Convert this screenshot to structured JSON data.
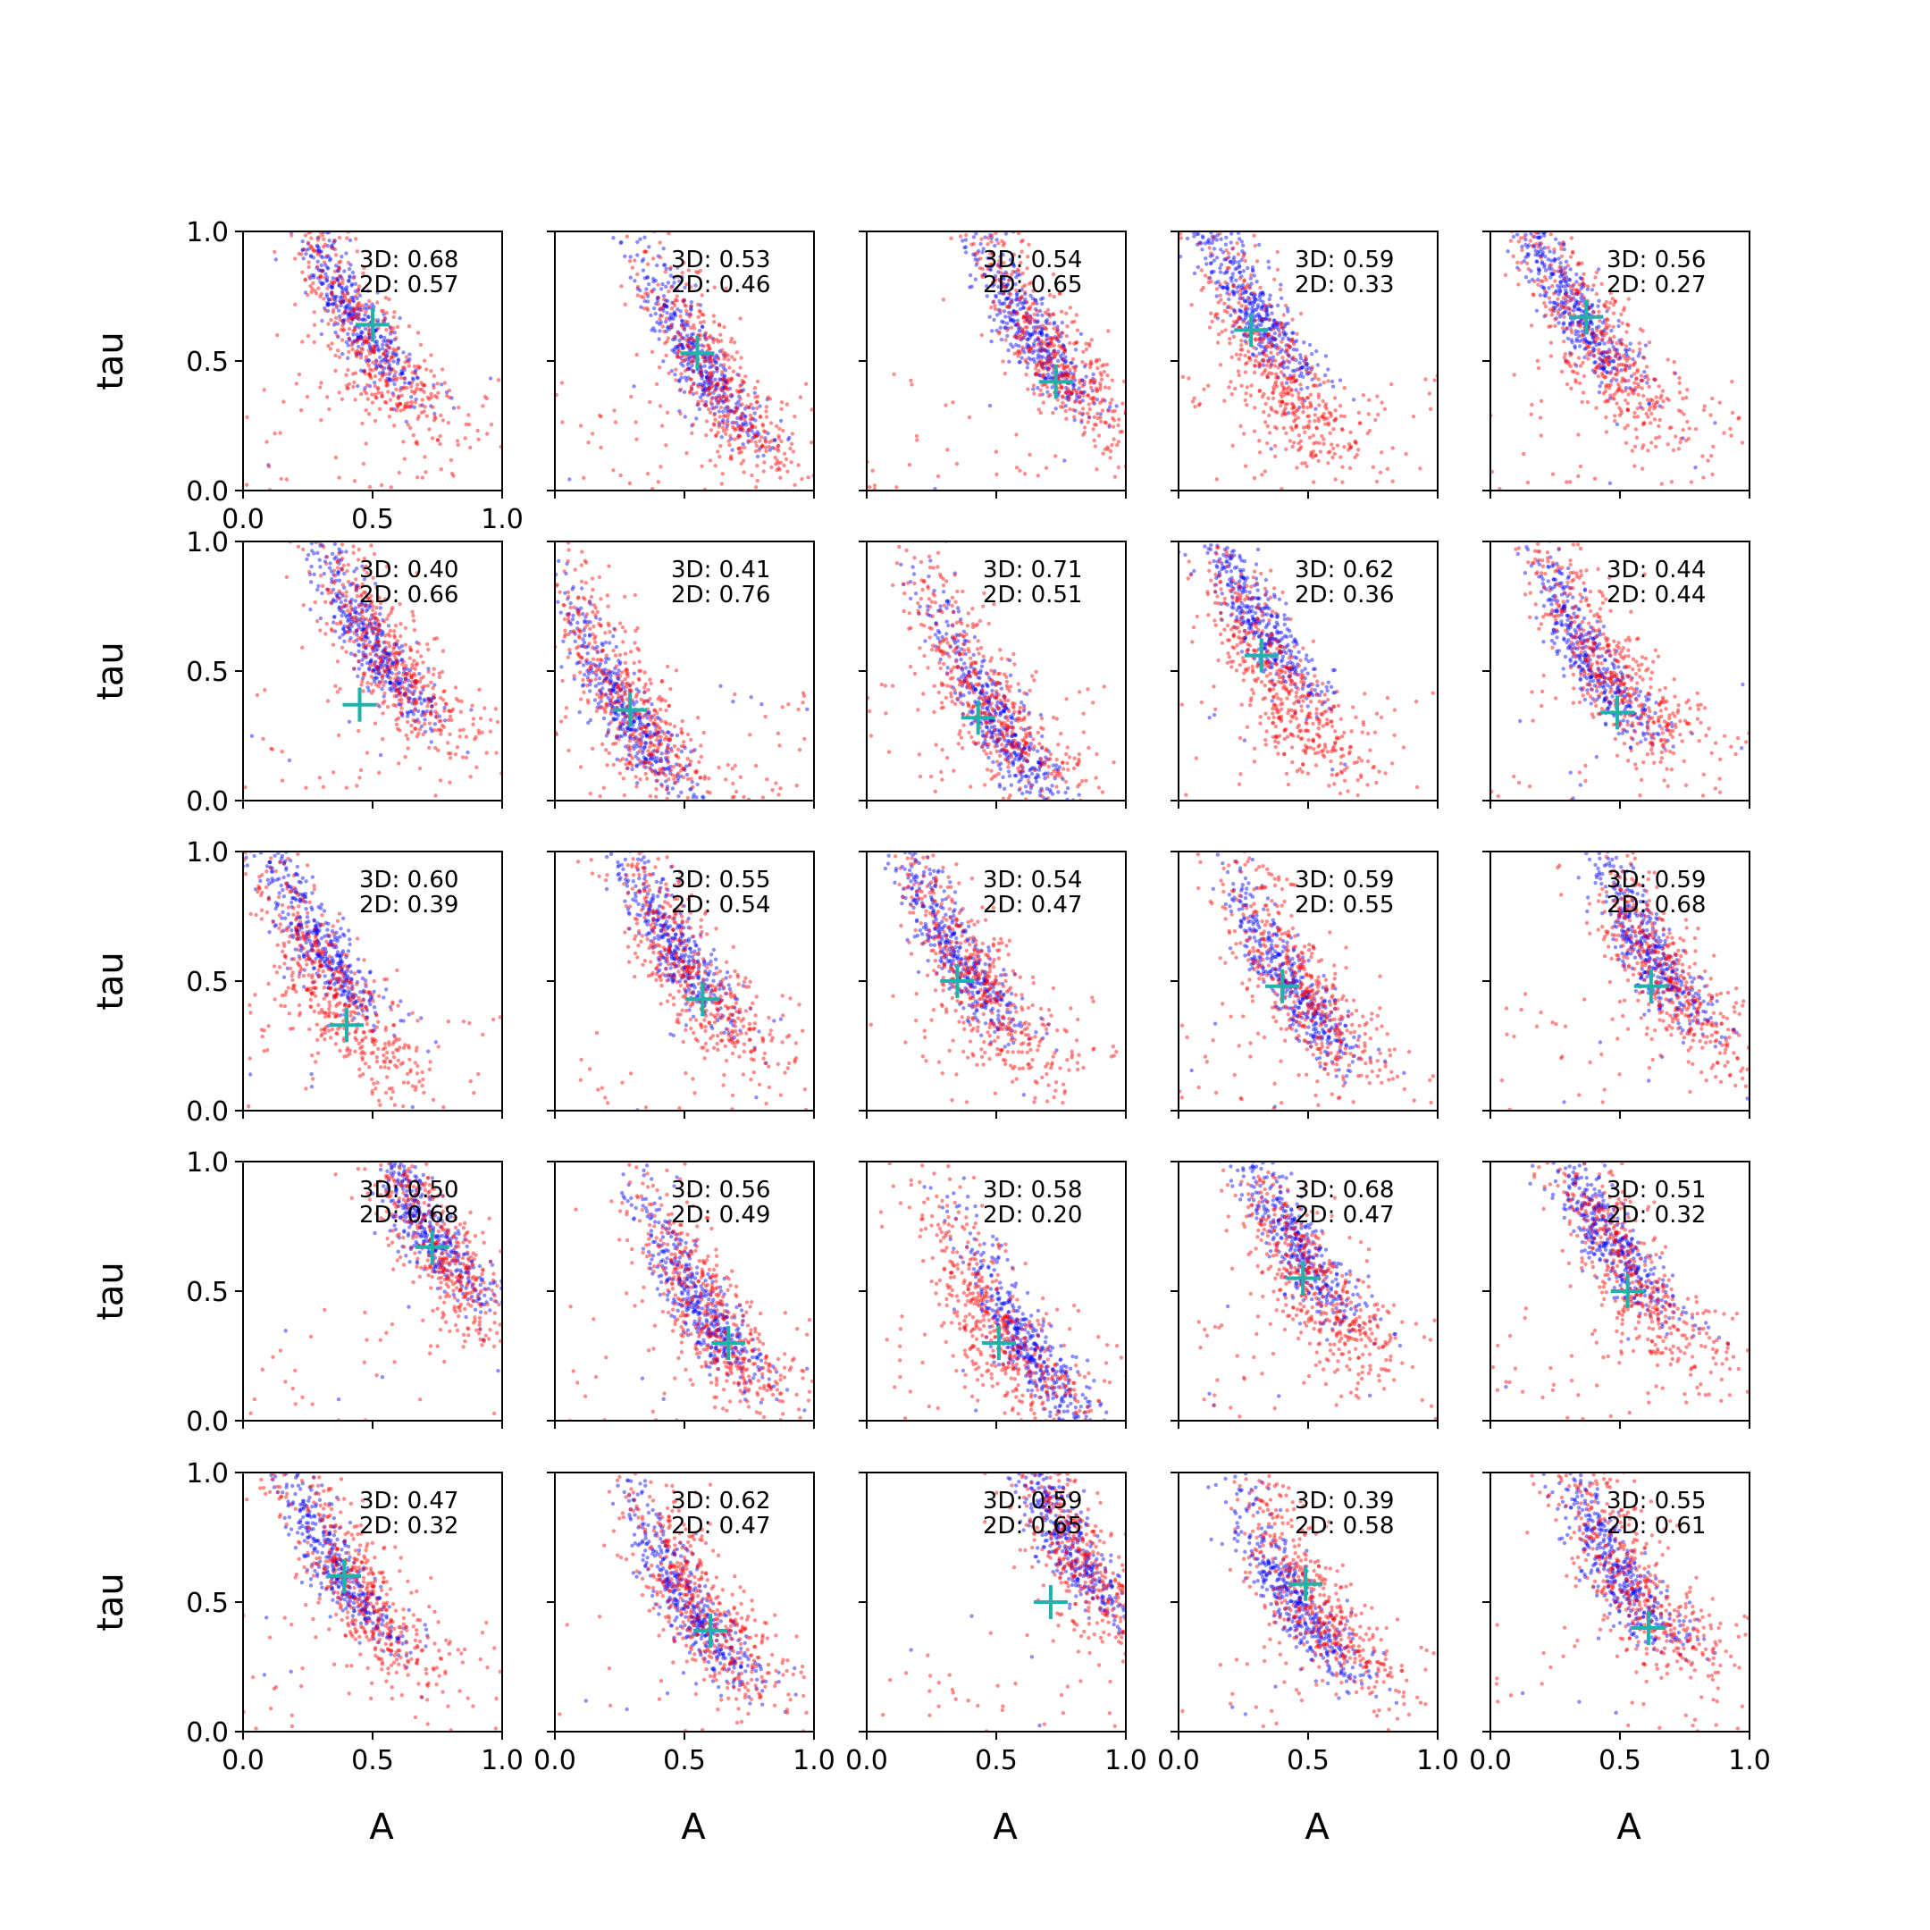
{
  "figure": {
    "xlabel": "A",
    "ylabel": "tau",
    "colors": {
      "red": "#ff0000",
      "blue": "#0000ff",
      "marker": "#20b2aa",
      "axis": "#000000"
    }
  },
  "chart_data": [
    {
      "type": "scatter",
      "row": 0,
      "col": 0,
      "xlim": [
        0,
        1
      ],
      "ylim": [
        0,
        1
      ],
      "xticks": [
        "0.0",
        "0.5",
        "1.0"
      ],
      "yticks": [
        "0.0",
        "0.5",
        "1.0"
      ],
      "xlabel": "",
      "ylabel": "tau",
      "annotation": {
        "line1": "3D: 0.68",
        "line2": "2D: 0.57"
      },
      "truth": {
        "x": 0.5,
        "y": 0.64
      },
      "red_cloud": {
        "center": [
          0.48,
          0.56
        ],
        "shape": "curved-band",
        "scatter": "wide"
      },
      "blue_cloud": {
        "center": [
          0.42,
          0.68
        ],
        "shape": "curved-band",
        "scatter": "tight"
      }
    },
    {
      "type": "scatter",
      "row": 0,
      "col": 1,
      "xlim": [
        0,
        1
      ],
      "ylim": [
        0,
        1
      ],
      "xticks": [],
      "yticks": [],
      "xlabel": "",
      "ylabel": "",
      "annotation": {
        "line1": "3D: 0.53",
        "line2": "2D: 0.46"
      },
      "truth": {
        "x": 0.55,
        "y": 0.53
      },
      "red_cloud": {
        "center": [
          0.62,
          0.4
        ],
        "shape": "curved-band",
        "scatter": "wide"
      },
      "blue_cloud": {
        "center": [
          0.55,
          0.5
        ],
        "shape": "curved-band",
        "scatter": "tight"
      }
    },
    {
      "type": "scatter",
      "row": 0,
      "col": 2,
      "xlim": [
        0,
        1
      ],
      "ylim": [
        0,
        1
      ],
      "xticks": [],
      "yticks": [],
      "xlabel": "",
      "ylabel": "",
      "annotation": {
        "line1": "3D: 0.54",
        "line2": "2D: 0.65"
      },
      "truth": {
        "x": 0.73,
        "y": 0.42
      },
      "red_cloud": {
        "center": [
          0.7,
          0.55
        ],
        "shape": "curved-band",
        "scatter": "wide"
      },
      "blue_cloud": {
        "center": [
          0.62,
          0.62
        ],
        "shape": "curved-band",
        "scatter": "tight"
      }
    },
    {
      "type": "scatter",
      "row": 0,
      "col": 3,
      "xlim": [
        0,
        1
      ],
      "ylim": [
        0,
        1
      ],
      "xticks": [],
      "yticks": [],
      "xlabel": "",
      "ylabel": "",
      "annotation": {
        "line1": "3D: 0.59",
        "line2": "2D: 0.33"
      },
      "truth": {
        "x": 0.28,
        "y": 0.62
      },
      "red_cloud": {
        "center": [
          0.38,
          0.42
        ],
        "shape": "curved-band",
        "scatter": "wide"
      },
      "blue_cloud": {
        "center": [
          0.28,
          0.7
        ],
        "shape": "curved-band",
        "scatter": "tight"
      }
    },
    {
      "type": "scatter",
      "row": 0,
      "col": 4,
      "xlim": [
        0,
        1
      ],
      "ylim": [
        0,
        1
      ],
      "xticks": [],
      "yticks": [],
      "xlabel": "",
      "ylabel": "",
      "annotation": {
        "line1": "3D: 0.56",
        "line2": "2D: 0.27"
      },
      "truth": {
        "x": 0.37,
        "y": 0.67
      },
      "red_cloud": {
        "center": [
          0.42,
          0.55
        ],
        "shape": "curved-band",
        "scatter": "wide"
      },
      "blue_cloud": {
        "center": [
          0.32,
          0.7
        ],
        "shape": "curved-band",
        "scatter": "tight"
      }
    },
    {
      "type": "scatter",
      "row": 1,
      "col": 0,
      "xlim": [
        0,
        1
      ],
      "ylim": [
        0,
        1
      ],
      "xticks": [],
      "yticks": [
        "0.0",
        "0.5",
        "1.0"
      ],
      "xlabel": "",
      "ylabel": "tau",
      "annotation": {
        "line1": "3D: 0.40",
        "line2": "2D: 0.66"
      },
      "truth": {
        "x": 0.45,
        "y": 0.37
      },
      "red_cloud": {
        "center": [
          0.55,
          0.55
        ],
        "shape": "curved-band",
        "scatter": "wide"
      },
      "blue_cloud": {
        "center": [
          0.5,
          0.6
        ],
        "shape": "curved-band",
        "scatter": "tight"
      }
    },
    {
      "type": "scatter",
      "row": 1,
      "col": 1,
      "xlim": [
        0,
        1
      ],
      "ylim": [
        0,
        1
      ],
      "xticks": [],
      "yticks": [],
      "xlabel": "",
      "ylabel": "",
      "annotation": {
        "line1": "3D: 0.41",
        "line2": "2D: 0.76"
      },
      "truth": {
        "x": 0.29,
        "y": 0.35
      },
      "red_cloud": {
        "center": [
          0.3,
          0.35
        ],
        "shape": "curved-band",
        "scatter": "wide"
      },
      "blue_cloud": {
        "center": [
          0.28,
          0.32
        ],
        "shape": "curved-band",
        "scatter": "tight"
      }
    },
    {
      "type": "scatter",
      "row": 1,
      "col": 2,
      "xlim": [
        0,
        1
      ],
      "ylim": [
        0,
        1
      ],
      "xticks": [],
      "yticks": [],
      "xlabel": "",
      "ylabel": "",
      "annotation": {
        "line1": "3D: 0.71",
        "line2": "2D: 0.51"
      },
      "truth": {
        "x": 0.43,
        "y": 0.32
      },
      "red_cloud": {
        "center": [
          0.45,
          0.4
        ],
        "shape": "curved-band",
        "scatter": "wide"
      },
      "blue_cloud": {
        "center": [
          0.5,
          0.3
        ],
        "shape": "curved-band",
        "scatter": "tight"
      }
    },
    {
      "type": "scatter",
      "row": 1,
      "col": 3,
      "xlim": [
        0,
        1
      ],
      "ylim": [
        0,
        1
      ],
      "xticks": [],
      "yticks": [],
      "xlabel": "",
      "ylabel": "",
      "annotation": {
        "line1": "3D: 0.62",
        "line2": "2D: 0.36"
      },
      "truth": {
        "x": 0.32,
        "y": 0.56
      },
      "red_cloud": {
        "center": [
          0.38,
          0.45
        ],
        "shape": "curved-band",
        "scatter": "wide"
      },
      "blue_cloud": {
        "center": [
          0.3,
          0.7
        ],
        "shape": "curved-band",
        "scatter": "tight"
      }
    },
    {
      "type": "scatter",
      "row": 1,
      "col": 4,
      "xlim": [
        0,
        1
      ],
      "ylim": [
        0,
        1
      ],
      "xticks": [],
      "yticks": [],
      "xlabel": "",
      "ylabel": "",
      "annotation": {
        "line1": "3D: 0.44",
        "line2": "2D: 0.44"
      },
      "truth": {
        "x": 0.49,
        "y": 0.34
      },
      "red_cloud": {
        "center": [
          0.45,
          0.52
        ],
        "shape": "curved-band",
        "scatter": "wide"
      },
      "blue_cloud": {
        "center": [
          0.38,
          0.55
        ],
        "shape": "curved-band",
        "scatter": "tight"
      }
    },
    {
      "type": "scatter",
      "row": 2,
      "col": 0,
      "xlim": [
        0,
        1
      ],
      "ylim": [
        0,
        1
      ],
      "xticks": [],
      "yticks": [
        "0.0",
        "0.5",
        "1.0"
      ],
      "xlabel": "",
      "ylabel": "tau",
      "annotation": {
        "line1": "3D: 0.60",
        "line2": "2D: 0.39"
      },
      "truth": {
        "x": 0.4,
        "y": 0.33
      },
      "red_cloud": {
        "center": [
          0.35,
          0.45
        ],
        "shape": "curved-band",
        "scatter": "wide"
      },
      "blue_cloud": {
        "center": [
          0.28,
          0.65
        ],
        "shape": "curved-band",
        "scatter": "tight"
      }
    },
    {
      "type": "scatter",
      "row": 2,
      "col": 1,
      "xlim": [
        0,
        1
      ],
      "ylim": [
        0,
        1
      ],
      "xticks": [],
      "yticks": [],
      "xlabel": "",
      "ylabel": "",
      "annotation": {
        "line1": "3D: 0.55",
        "line2": "2D: 0.54"
      },
      "truth": {
        "x": 0.57,
        "y": 0.43
      },
      "red_cloud": {
        "center": [
          0.5,
          0.55
        ],
        "shape": "curved-band",
        "scatter": "wide"
      },
      "blue_cloud": {
        "center": [
          0.45,
          0.65
        ],
        "shape": "curved-band",
        "scatter": "tight"
      }
    },
    {
      "type": "scatter",
      "row": 2,
      "col": 2,
      "xlim": [
        0,
        1
      ],
      "ylim": [
        0,
        1
      ],
      "xticks": [],
      "yticks": [],
      "xlabel": "",
      "ylabel": "",
      "annotation": {
        "line1": "3D: 0.54",
        "line2": "2D: 0.47"
      },
      "truth": {
        "x": 0.35,
        "y": 0.5
      },
      "red_cloud": {
        "center": [
          0.42,
          0.5
        ],
        "shape": "curved-band",
        "scatter": "wide"
      },
      "blue_cloud": {
        "center": [
          0.35,
          0.6
        ],
        "shape": "curved-band",
        "scatter": "tight"
      }
    },
    {
      "type": "scatter",
      "row": 2,
      "col": 3,
      "xlim": [
        0,
        1
      ],
      "ylim": [
        0,
        1
      ],
      "xticks": [],
      "yticks": [],
      "xlabel": "",
      "ylabel": "",
      "annotation": {
        "line1": "3D: 0.59",
        "line2": "2D: 0.55"
      },
      "truth": {
        "x": 0.4,
        "y": 0.48
      },
      "red_cloud": {
        "center": [
          0.45,
          0.5
        ],
        "shape": "curved-band",
        "scatter": "wide"
      },
      "blue_cloud": {
        "center": [
          0.42,
          0.5
        ],
        "shape": "curved-band",
        "scatter": "tight"
      }
    },
    {
      "type": "scatter",
      "row": 2,
      "col": 4,
      "xlim": [
        0,
        1
      ],
      "ylim": [
        0,
        1
      ],
      "xticks": [],
      "yticks": [],
      "xlabel": "",
      "ylabel": "",
      "annotation": {
        "line1": "3D: 0.59",
        "line2": "2D: 0.68"
      },
      "truth": {
        "x": 0.62,
        "y": 0.48
      },
      "red_cloud": {
        "center": [
          0.65,
          0.55
        ],
        "shape": "curved-band",
        "scatter": "wide"
      },
      "blue_cloud": {
        "center": [
          0.6,
          0.62
        ],
        "shape": "curved-band",
        "scatter": "tight"
      }
    },
    {
      "type": "scatter",
      "row": 3,
      "col": 0,
      "xlim": [
        0,
        1
      ],
      "ylim": [
        0,
        1
      ],
      "xticks": [],
      "yticks": [
        "0.0",
        "0.5",
        "1.0"
      ],
      "xlabel": "",
      "ylabel": "tau",
      "annotation": {
        "line1": "3D: 0.50",
        "line2": "2D: 0.68"
      },
      "truth": {
        "x": 0.73,
        "y": 0.67
      },
      "red_cloud": {
        "center": [
          0.75,
          0.68
        ],
        "shape": "curved-band",
        "scatter": "wide"
      },
      "blue_cloud": {
        "center": [
          0.7,
          0.75
        ],
        "shape": "curved-band",
        "scatter": "tight"
      }
    },
    {
      "type": "scatter",
      "row": 3,
      "col": 1,
      "xlim": [
        0,
        1
      ],
      "ylim": [
        0,
        1
      ],
      "xticks": [],
      "yticks": [],
      "xlabel": "",
      "ylabel": "",
      "annotation": {
        "line1": "3D: 0.56",
        "line2": "2D: 0.49"
      },
      "truth": {
        "x": 0.67,
        "y": 0.3
      },
      "red_cloud": {
        "center": [
          0.58,
          0.42
        ],
        "shape": "curved-band",
        "scatter": "wide"
      },
      "blue_cloud": {
        "center": [
          0.55,
          0.45
        ],
        "shape": "curved-band",
        "scatter": "tight"
      }
    },
    {
      "type": "scatter",
      "row": 3,
      "col": 2,
      "xlim": [
        0,
        1
      ],
      "ylim": [
        0,
        1
      ],
      "xticks": [],
      "yticks": [],
      "xlabel": "",
      "ylabel": "",
      "annotation": {
        "line1": "3D: 0.58",
        "line2": "2D: 0.20"
      },
      "truth": {
        "x": 0.51,
        "y": 0.3
      },
      "red_cloud": {
        "center": [
          0.5,
          0.35
        ],
        "shape": "curved-band",
        "scatter": "wide"
      },
      "blue_cloud": {
        "center": [
          0.6,
          0.3
        ],
        "shape": "curved-band",
        "scatter": "tight"
      }
    },
    {
      "type": "scatter",
      "row": 3,
      "col": 3,
      "xlim": [
        0,
        1
      ],
      "ylim": [
        0,
        1
      ],
      "xticks": [],
      "yticks": [],
      "xlabel": "",
      "ylabel": "",
      "annotation": {
        "line1": "3D: 0.68",
        "line2": "2D: 0.47"
      },
      "truth": {
        "x": 0.48,
        "y": 0.55
      },
      "red_cloud": {
        "center": [
          0.5,
          0.55
        ],
        "shape": "curved-band",
        "scatter": "wide"
      },
      "blue_cloud": {
        "center": [
          0.45,
          0.68
        ],
        "shape": "curved-band",
        "scatter": "tight"
      }
    },
    {
      "type": "scatter",
      "row": 3,
      "col": 4,
      "xlim": [
        0,
        1
      ],
      "ylim": [
        0,
        1
      ],
      "xticks": [],
      "yticks": [],
      "xlabel": "",
      "ylabel": "",
      "annotation": {
        "line1": "3D: 0.51",
        "line2": "2D: 0.32"
      },
      "truth": {
        "x": 0.53,
        "y": 0.5
      },
      "red_cloud": {
        "center": [
          0.52,
          0.58
        ],
        "shape": "curved-band",
        "scatter": "wide"
      },
      "blue_cloud": {
        "center": [
          0.45,
          0.7
        ],
        "shape": "curved-band",
        "scatter": "tight"
      }
    },
    {
      "type": "scatter",
      "row": 4,
      "col": 0,
      "xlim": [
        0,
        1
      ],
      "ylim": [
        0,
        1
      ],
      "xticks": [
        "0.0",
        "0.5",
        "1.0"
      ],
      "yticks": [
        "0.0",
        "0.5",
        "1.0"
      ],
      "xlabel": "A",
      "ylabel": "tau",
      "annotation": {
        "line1": "3D: 0.47",
        "line2": "2D: 0.32"
      },
      "truth": {
        "x": 0.39,
        "y": 0.6
      },
      "red_cloud": {
        "center": [
          0.45,
          0.55
        ],
        "shape": "curved-band",
        "scatter": "wide"
      },
      "blue_cloud": {
        "center": [
          0.35,
          0.65
        ],
        "shape": "curved-band",
        "scatter": "tight"
      }
    },
    {
      "type": "scatter",
      "row": 4,
      "col": 1,
      "xlim": [
        0,
        1
      ],
      "ylim": [
        0,
        1
      ],
      "xticks": [
        "0.0",
        "0.5",
        "1.0"
      ],
      "yticks": [],
      "xlabel": "A",
      "ylabel": "",
      "annotation": {
        "line1": "3D: 0.62",
        "line2": "2D: 0.47"
      },
      "truth": {
        "x": 0.6,
        "y": 0.39
      },
      "red_cloud": {
        "center": [
          0.55,
          0.5
        ],
        "shape": "curved-band",
        "scatter": "wide"
      },
      "blue_cloud": {
        "center": [
          0.52,
          0.48
        ],
        "shape": "curved-band",
        "scatter": "tight"
      }
    },
    {
      "type": "scatter",
      "row": 4,
      "col": 2,
      "xlim": [
        0,
        1
      ],
      "ylim": [
        0,
        1
      ],
      "xticks": [
        "0.0",
        "0.5",
        "1.0"
      ],
      "yticks": [],
      "xlabel": "A",
      "ylabel": "",
      "annotation": {
        "line1": "3D: 0.59",
        "line2": "2D: 0.65"
      },
      "truth": {
        "x": 0.71,
        "y": 0.5
      },
      "red_cloud": {
        "center": [
          0.83,
          0.65
        ],
        "shape": "curved-band",
        "scatter": "wide"
      },
      "blue_cloud": {
        "center": [
          0.78,
          0.72
        ],
        "shape": "curved-band",
        "scatter": "tight"
      }
    },
    {
      "type": "scatter",
      "row": 4,
      "col": 3,
      "xlim": [
        0,
        1
      ],
      "ylim": [
        0,
        1
      ],
      "xticks": [
        "0.0",
        "0.5",
        "1.0"
      ],
      "yticks": [],
      "xlabel": "A",
      "ylabel": "",
      "annotation": {
        "line1": "3D: 0.39",
        "line2": "2D: 0.58"
      },
      "truth": {
        "x": 0.49,
        "y": 0.57
      },
      "red_cloud": {
        "center": [
          0.5,
          0.52
        ],
        "shape": "curved-band",
        "scatter": "wide"
      },
      "blue_cloud": {
        "center": [
          0.45,
          0.5
        ],
        "shape": "curved-band",
        "scatter": "tight"
      }
    },
    {
      "type": "scatter",
      "row": 4,
      "col": 4,
      "xlim": [
        0,
        1
      ],
      "ylim": [
        0,
        1
      ],
      "xticks": [
        "0.0",
        "0.5",
        "1.0"
      ],
      "yticks": [],
      "xlabel": "A",
      "ylabel": "",
      "annotation": {
        "line1": "3D: 0.55",
        "line2": "2D: 0.61"
      },
      "truth": {
        "x": 0.61,
        "y": 0.4
      },
      "red_cloud": {
        "center": [
          0.55,
          0.58
        ],
        "shape": "curved-band",
        "scatter": "wide"
      },
      "blue_cloud": {
        "center": [
          0.48,
          0.62
        ],
        "shape": "curved-band",
        "scatter": "tight"
      }
    }
  ]
}
